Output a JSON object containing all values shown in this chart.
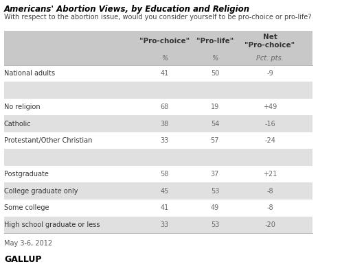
{
  "title": "Americans' Abortion Views, by Education and Religion",
  "subtitle": "With respect to the abortion issue, would you consider yourself to be pro-choice or pro-life?",
  "col_headers": [
    "",
    "\"Pro-choice\"",
    "\"Pro-life\"",
    "Net\n\"Pro-choice\""
  ],
  "col_subheaders": [
    "",
    "%",
    "%",
    "Pct. pts."
  ],
  "rows": [
    {
      "label": "National adults",
      "pro_choice": "41",
      "pro_life": "50",
      "net": "-9",
      "shaded": false,
      "spacer": false
    },
    {
      "label": "",
      "pro_choice": "",
      "pro_life": "",
      "net": "",
      "shaded": true,
      "spacer": true
    },
    {
      "label": "No religion",
      "pro_choice": "68",
      "pro_life": "19",
      "net": "+49",
      "shaded": false,
      "spacer": false
    },
    {
      "label": "Catholic",
      "pro_choice": "38",
      "pro_life": "54",
      "net": "-16",
      "shaded": true,
      "spacer": false
    },
    {
      "label": "Protestant/Other Christian",
      "pro_choice": "33",
      "pro_life": "57",
      "net": "-24",
      "shaded": false,
      "spacer": false
    },
    {
      "label": "",
      "pro_choice": "",
      "pro_life": "",
      "net": "",
      "shaded": true,
      "spacer": true
    },
    {
      "label": "Postgraduate",
      "pro_choice": "58",
      "pro_life": "37",
      "net": "+21",
      "shaded": false,
      "spacer": false
    },
    {
      "label": "College graduate only",
      "pro_choice": "45",
      "pro_life": "53",
      "net": "-8",
      "shaded": true,
      "spacer": false
    },
    {
      "label": "Some college",
      "pro_choice": "41",
      "pro_life": "49",
      "net": "-8",
      "shaded": false,
      "spacer": false
    },
    {
      "label": "High school graduate or less",
      "pro_choice": "33",
      "pro_life": "53",
      "net": "-20",
      "shaded": true,
      "spacer": false
    }
  ],
  "footer_date": "May 3-6, 2012",
  "footer_brand": "GALLUP",
  "bg_color": "#ffffff",
  "shaded_row_color": "#e0e0e0",
  "header_row_color": "#c8c8c8",
  "text_color": "#333333",
  "title_color": "#000000",
  "data_color": "#666666",
  "label_color": "#333333"
}
